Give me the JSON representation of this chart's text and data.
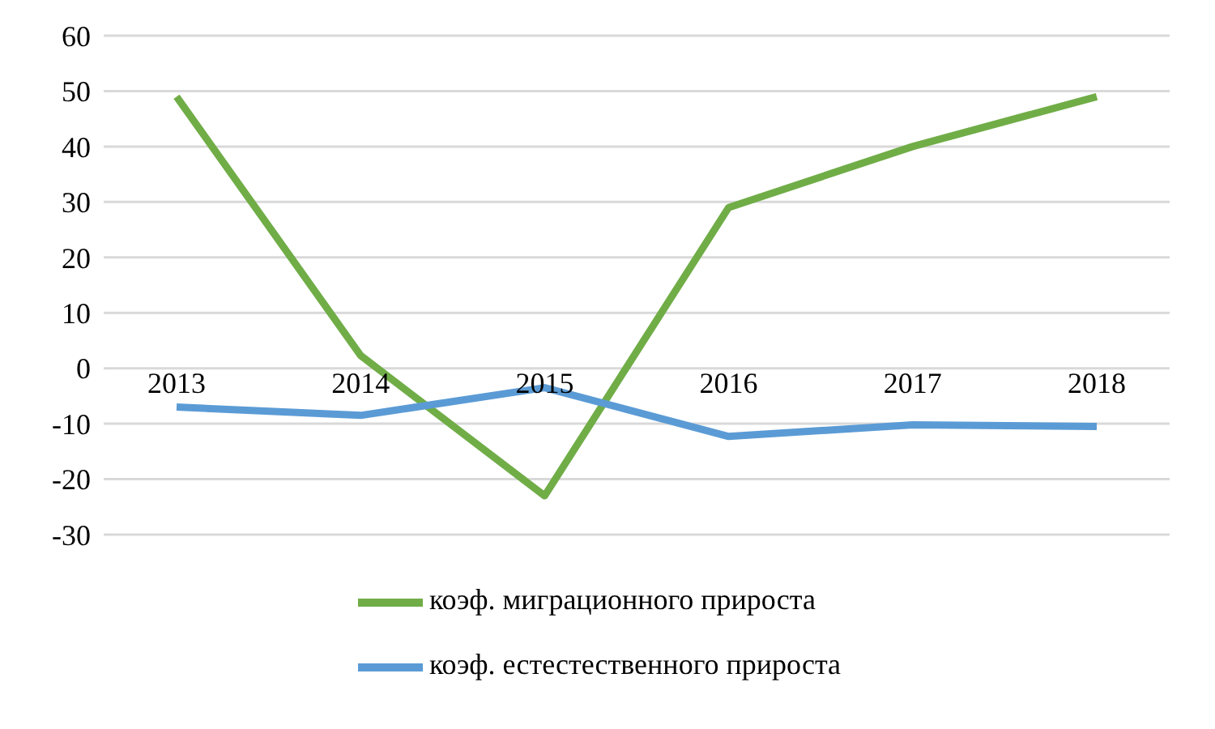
{
  "chart_data": {
    "type": "line",
    "categories": [
      "2013",
      "2014",
      "2015",
      "2016",
      "2017",
      "2018"
    ],
    "series": [
      {
        "name": "коэф. миграционного прироста",
        "color": "#70ad47",
        "values": [
          49,
          2.3,
          -23,
          29,
          40,
          49
        ]
      },
      {
        "name": "коэф. естестественного прироста",
        "color": "#5b9bd5",
        "values": [
          -7,
          -8.5,
          -3.5,
          -12.3,
          -10.2,
          -10.5
        ]
      }
    ],
    "ylim": [
      -30,
      60
    ],
    "yticks": [
      -30,
      -20,
      -10,
      0,
      10,
      20,
      30,
      40,
      50,
      60
    ],
    "grid": "y",
    "legend": "bottom",
    "marker": "none",
    "line_style": "solid"
  }
}
